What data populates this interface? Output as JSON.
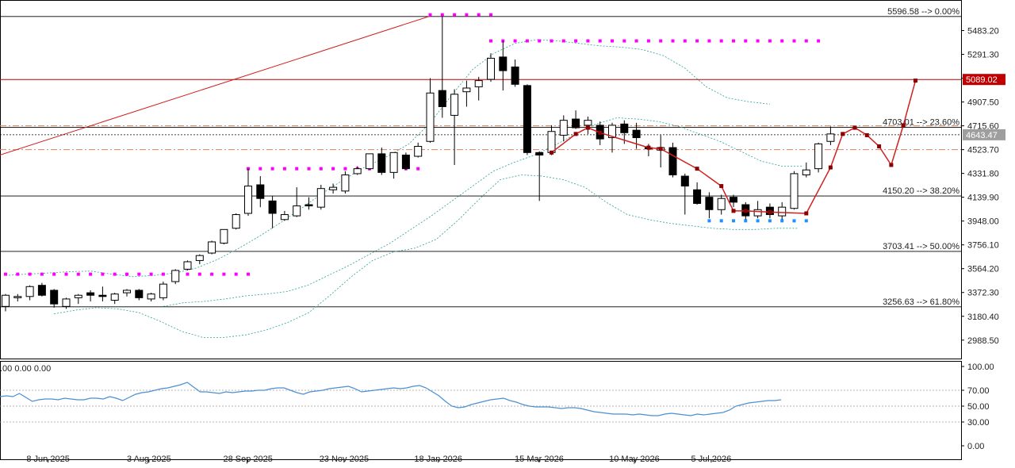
{
  "chart_data": {
    "type": "candlestick",
    "price_axis": {
      "min": 2840,
      "max": 5640,
      "ticks": [
        "5483.20",
        "5291.30",
        "5099.40",
        "4907.50",
        "4715.60",
        "4523.70",
        "4331.80",
        "4139.90",
        "3948.00",
        "3756.10",
        "3564.20",
        "3372.30",
        "3180.40",
        "2988.50"
      ]
    },
    "current_price_label": "5089.02",
    "secondary_price_label": "4643.47",
    "fibonacci_levels": [
      {
        "price": 5596.58,
        "label": "5596.58 --> 0.00%"
      },
      {
        "price": 4703.01,
        "label": "4703.01 --> 23.60%"
      },
      {
        "price": 4150.2,
        "label": "4150.20 --> 38.20%"
      },
      {
        "price": 3703.41,
        "label": "3703.41 --> 50.00%"
      },
      {
        "price": 3256.63,
        "label": "3256.63 --> 61.80%"
      }
    ],
    "current_price_line": 5089.02,
    "secondary_price_line": 4643.47,
    "dashdot_levels": [
      4715.6,
      4523.7
    ],
    "candles": [
      {
        "o": 3260,
        "h": 3360,
        "l": 3220,
        "c": 3350
      },
      {
        "o": 3330,
        "h": 3360,
        "l": 3300,
        "c": 3340
      },
      {
        "o": 3340,
        "h": 3430,
        "l": 3310,
        "c": 3420
      },
      {
        "o": 3430,
        "h": 3450,
        "l": 3340,
        "c": 3350
      },
      {
        "o": 3390,
        "h": 3400,
        "l": 3250,
        "c": 3280
      },
      {
        "o": 3260,
        "h": 3330,
        "l": 3240,
        "c": 3320
      },
      {
        "o": 3330,
        "h": 3360,
        "l": 3280,
        "c": 3350
      },
      {
        "o": 3370,
        "h": 3390,
        "l": 3300,
        "c": 3350
      },
      {
        "o": 3350,
        "h": 3420,
        "l": 3300,
        "c": 3340
      },
      {
        "o": 3310,
        "h": 3370,
        "l": 3280,
        "c": 3360
      },
      {
        "o": 3370,
        "h": 3400,
        "l": 3340,
        "c": 3390
      },
      {
        "o": 3390,
        "h": 3400,
        "l": 3310,
        "c": 3330
      },
      {
        "o": 3320,
        "h": 3370,
        "l": 3300,
        "c": 3360
      },
      {
        "o": 3330,
        "h": 3460,
        "l": 3310,
        "c": 3440
      },
      {
        "o": 3460,
        "h": 3560,
        "l": 3440,
        "c": 3550
      },
      {
        "o": 3560,
        "h": 3630,
        "l": 3550,
        "c": 3620
      },
      {
        "o": 3630,
        "h": 3680,
        "l": 3600,
        "c": 3670
      },
      {
        "o": 3690,
        "h": 3790,
        "l": 3680,
        "c": 3780
      },
      {
        "o": 3770,
        "h": 3880,
        "l": 3760,
        "c": 3880
      },
      {
        "o": 3890,
        "h": 4010,
        "l": 3880,
        "c": 4000
      },
      {
        "o": 4010,
        "h": 4370,
        "l": 3990,
        "c": 4230
      },
      {
        "o": 4240,
        "h": 4310,
        "l": 4060,
        "c": 4130
      },
      {
        "o": 4110,
        "h": 4150,
        "l": 3890,
        "c": 4010
      },
      {
        "o": 3960,
        "h": 4030,
        "l": 3950,
        "c": 4000
      },
      {
        "o": 3990,
        "h": 4220,
        "l": 3980,
        "c": 4070
      },
      {
        "o": 4080,
        "h": 4140,
        "l": 4040,
        "c": 4070
      },
      {
        "o": 4060,
        "h": 4240,
        "l": 4040,
        "c": 4210
      },
      {
        "o": 4200,
        "h": 4250,
        "l": 4170,
        "c": 4220
      },
      {
        "o": 4190,
        "h": 4350,
        "l": 4170,
        "c": 4320
      },
      {
        "o": 4330,
        "h": 4390,
        "l": 4320,
        "c": 4370
      },
      {
        "o": 4370,
        "h": 4490,
        "l": 4360,
        "c": 4490
      },
      {
        "o": 4490,
        "h": 4540,
        "l": 4320,
        "c": 4340
      },
      {
        "o": 4340,
        "h": 4500,
        "l": 4290,
        "c": 4500
      },
      {
        "o": 4480,
        "h": 4500,
        "l": 4360,
        "c": 4370
      },
      {
        "o": 4470,
        "h": 4580,
        "l": 4460,
        "c": 4550
      },
      {
        "o": 4590,
        "h": 5100,
        "l": 4580,
        "c": 4980
      },
      {
        "o": 5000,
        "h": 5600,
        "l": 4780,
        "c": 4870
      },
      {
        "o": 4800,
        "h": 5010,
        "l": 4400,
        "c": 4970
      },
      {
        "o": 4990,
        "h": 5080,
        "l": 4870,
        "c": 5020
      },
      {
        "o": 5030,
        "h": 5110,
        "l": 4920,
        "c": 5080
      },
      {
        "o": 5090,
        "h": 5300,
        "l": 5070,
        "c": 5260
      },
      {
        "o": 5270,
        "h": 5400,
        "l": 5000,
        "c": 5160
      },
      {
        "o": 5190,
        "h": 5250,
        "l": 5030,
        "c": 5050
      },
      {
        "o": 5040,
        "h": 5050,
        "l": 4480,
        "c": 4500
      },
      {
        "o": 4500,
        "h": 4510,
        "l": 4110,
        "c": 4480
      },
      {
        "o": 4500,
        "h": 4720,
        "l": 4480,
        "c": 4670
      },
      {
        "o": 4640,
        "h": 4800,
        "l": 4590,
        "c": 4760
      },
      {
        "o": 4770,
        "h": 4840,
        "l": 4690,
        "c": 4700
      },
      {
        "o": 4720,
        "h": 4790,
        "l": 4650,
        "c": 4760
      },
      {
        "o": 4720,
        "h": 4750,
        "l": 4560,
        "c": 4610
      },
      {
        "o": 4620,
        "h": 4740,
        "l": 4500,
        "c": 4720
      },
      {
        "o": 4730,
        "h": 4760,
        "l": 4570,
        "c": 4660
      },
      {
        "o": 4680,
        "h": 4740,
        "l": 4530,
        "c": 4620
      },
      {
        "o": 4540,
        "h": 4570,
        "l": 4470,
        "c": 4530
      },
      {
        "o": 4520,
        "h": 4640,
        "l": 4380,
        "c": 4540
      },
      {
        "o": 4540,
        "h": 4580,
        "l": 4300,
        "c": 4320
      },
      {
        "o": 4310,
        "h": 4330,
        "l": 4000,
        "c": 4230
      },
      {
        "o": 4200,
        "h": 4260,
        "l": 4080,
        "c": 4090
      },
      {
        "o": 4140,
        "h": 4180,
        "l": 3970,
        "c": 4040
      },
      {
        "o": 4040,
        "h": 4160,
        "l": 4000,
        "c": 4130
      },
      {
        "o": 4140,
        "h": 4160,
        "l": 4060,
        "c": 4100
      },
      {
        "o": 4080,
        "h": 4100,
        "l": 3960,
        "c": 3990
      },
      {
        "o": 3990,
        "h": 4110,
        "l": 3970,
        "c": 4040
      },
      {
        "o": 4060,
        "h": 4090,
        "l": 3970,
        "c": 4000
      },
      {
        "o": 3990,
        "h": 4100,
        "l": 3960,
        "c": 4060
      },
      {
        "o": 4050,
        "h": 4350,
        "l": 4040,
        "c": 4330
      },
      {
        "o": 4320,
        "h": 4420,
        "l": 4300,
        "c": 4360
      },
      {
        "o": 4370,
        "h": 4580,
        "l": 4340,
        "c": 4570
      },
      {
        "o": 4590,
        "h": 4710,
        "l": 4560,
        "c": 4650
      }
    ],
    "bollinger_upper": [
      3510,
      3520,
      3530,
      3540,
      3545,
      3520,
      3500,
      3510,
      3530,
      3570,
      3640,
      3730,
      3830,
      3940,
      4060,
      4180,
      4290,
      4390,
      4470,
      4570,
      4740,
      4960,
      5170,
      5300,
      5380,
      5410,
      5400,
      5380,
      5360,
      5350,
      5330,
      5280,
      5180,
      5030,
      4940,
      4910,
      4890
    ],
    "bollinger_middle": [
      3260,
      3290,
      3300,
      3320,
      3345,
      3360,
      3380,
      3430,
      3510,
      3590,
      3680,
      3770,
      3880,
      3990,
      4110,
      4230,
      4350,
      4420,
      4480,
      4560,
      4650,
      4730,
      4780,
      4770,
      4750,
      4710,
      4650,
      4590,
      4510,
      4430,
      4390,
      4390
    ],
    "bollinger_lower": [
      3200,
      3230,
      3250,
      3240,
      3210,
      3140,
      3060,
      3010,
      3010,
      3030,
      3070,
      3130,
      3210,
      3350,
      3500,
      3630,
      3700,
      3730,
      3800,
      3950,
      4120,
      4280,
      4320,
      4310,
      4280,
      4220,
      4100,
      4000,
      3960,
      3930,
      3910,
      3890,
      3880,
      3880,
      3890,
      3890
    ],
    "fractal_dots": [
      {
        "price": 3520,
        "from": 0,
        "to": 20,
        "color": "#ff00ff"
      },
      {
        "price": 4370,
        "from": 20,
        "to": 34,
        "color": "#ff00ff"
      },
      {
        "price": 5610,
        "from": 35,
        "to": 40,
        "color": "#ff00ff"
      },
      {
        "price": 5400,
        "from": 40,
        "to": 67,
        "color": "#ff00ff"
      },
      {
        "price": 3950,
        "from": 58,
        "to": 66,
        "color": "#1e90ff"
      }
    ],
    "price_path": [
      {
        "i": 45,
        "p": 4500
      },
      {
        "i": 47,
        "p": 4650
      },
      {
        "i": 48,
        "p": 4700
      },
      {
        "i": 49,
        "p": 4660
      },
      {
        "i": 53,
        "p": 4540
      },
      {
        "i": 54,
        "p": 4530
      },
      {
        "i": 57,
        "p": 4370
      },
      {
        "i": 59,
        "p": 4230
      },
      {
        "i": 60,
        "p": 4030
      },
      {
        "i": 61,
        "p": 4030
      },
      {
        "i": 63,
        "p": 4020
      },
      {
        "i": 66,
        "p": 4010
      },
      {
        "i": 68,
        "p": 4380
      },
      {
        "i": 69,
        "p": 4650
      },
      {
        "i": 70,
        "p": 4700
      },
      {
        "i": 71,
        "p": 4640
      },
      {
        "i": 72,
        "p": 4550
      },
      {
        "i": 73,
        "p": 4400
      },
      {
        "i": 74,
        "p": 4720
      },
      {
        "i": 75,
        "p": 5080
      }
    ],
    "oscillator": {
      "label": ".00 0.00 0.00",
      "min": 0,
      "max": 100,
      "ticks": [
        "100.00",
        "70.00",
        "50.00",
        "30.00",
        "0.00"
      ],
      "levels": [
        70,
        50,
        30
      ],
      "values": [
        62,
        63,
        62,
        66,
        61,
        56,
        58,
        59,
        59,
        58,
        60,
        59,
        58,
        58,
        60,
        60,
        59,
        62,
        60,
        57,
        61,
        65,
        67,
        68,
        70,
        72,
        73,
        75,
        77,
        80,
        74,
        68,
        68,
        67,
        66,
        68,
        67,
        68,
        69,
        69,
        70,
        70,
        72,
        73,
        73,
        70,
        67,
        65,
        68,
        69,
        70,
        72,
        73,
        74,
        75,
        72,
        68,
        69,
        70,
        71,
        72,
        73,
        72,
        73,
        75,
        76,
        73,
        68,
        63,
        56,
        50,
        48,
        49,
        52,
        54,
        56,
        58,
        59,
        60,
        57,
        55,
        52,
        50,
        49,
        49,
        49,
        48,
        47,
        48,
        48,
        47,
        45,
        43,
        42,
        41,
        40,
        40,
        40,
        39,
        40,
        39,
        38,
        38,
        40,
        41,
        40,
        39,
        38,
        40,
        39,
        40,
        41,
        42,
        45,
        50,
        52,
        54,
        55,
        56,
        57,
        57,
        58
      ]
    },
    "time_labels": [
      {
        "text": "8 Jun 2025",
        "pos": 0.05
      },
      {
        "text": "3 Aug 2025",
        "pos": 0.155
      },
      {
        "text": "28 Sep 2025",
        "pos": 0.258
      },
      {
        "text": "23 Nov 2025",
        "pos": 0.358
      },
      {
        "text": "18 Jan 2026",
        "pos": 0.456
      },
      {
        "text": "15 Mar 2026",
        "pos": 0.561
      },
      {
        "text": "10 May 2026",
        "pos": 0.66
      },
      {
        "text": "5 Jul 2026",
        "pos": 0.74
      }
    ],
    "colors": {
      "bull": "#ffffff",
      "bear": "#000000",
      "fib": "#000000",
      "current": "#c00000",
      "trend": "#d02020",
      "dashdot": "#d98060",
      "band": "#2aa198",
      "osc": "#4a90d0"
    }
  }
}
